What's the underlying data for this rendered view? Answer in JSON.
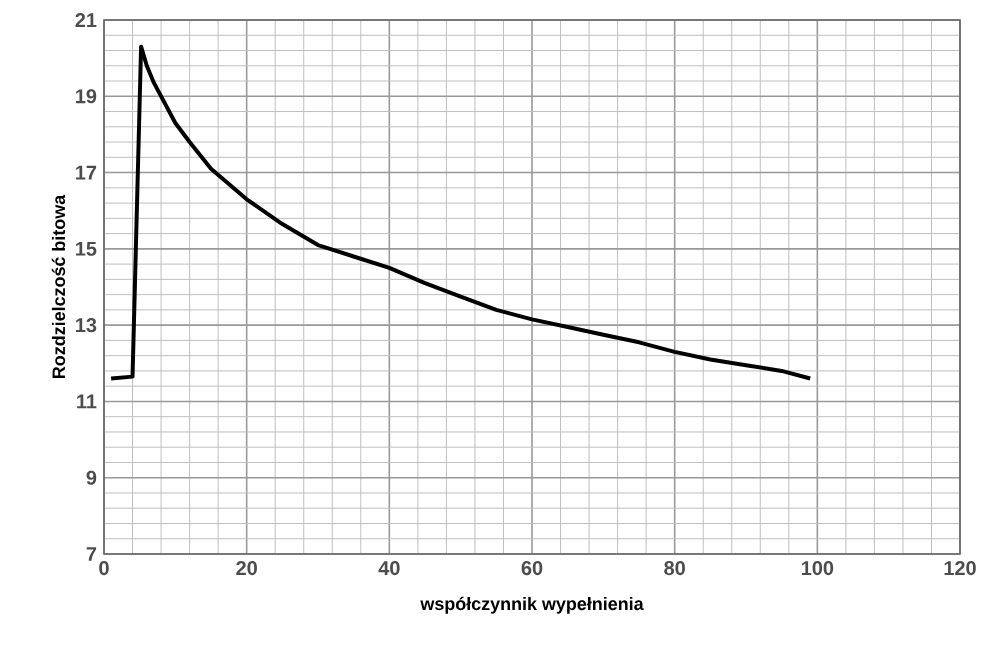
{
  "chart_data": {
    "type": "line",
    "xlabel": "współczynnik wypełnienia",
    "ylabel": "Rozdzielczość bitowa",
    "xlim": [
      0,
      120
    ],
    "xticks": [
      0,
      20,
      40,
      60,
      80,
      100,
      120
    ],
    "ylim": [
      7,
      21
    ],
    "yticks": [
      7,
      9,
      11,
      13,
      15,
      17,
      19,
      21
    ],
    "grid": true,
    "marker": "none",
    "line_style": "solid",
    "series": [
      {
        "color": "#000000",
        "x": [
          1,
          4,
          5.2,
          6,
          7,
          8,
          10,
          12,
          15,
          20,
          25,
          30,
          35,
          40,
          45,
          50,
          55,
          60,
          65,
          70,
          75,
          80,
          85,
          90,
          95,
          99
        ],
        "values": [
          11.6,
          11.65,
          20.3,
          19.8,
          19.35,
          19.0,
          18.3,
          17.8,
          17.1,
          16.3,
          15.65,
          15.1,
          14.8,
          14.5,
          14.1,
          13.75,
          13.4,
          13.15,
          12.95,
          12.75,
          12.55,
          12.3,
          12.1,
          11.95,
          11.8,
          11.6
        ]
      }
    ]
  }
}
